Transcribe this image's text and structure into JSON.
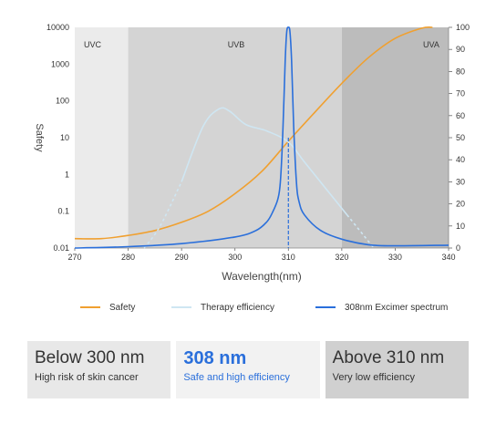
{
  "chart_data": {
    "type": "line",
    "xlabel": "Wavelength(nm)",
    "ylabel": "Safety",
    "x_ticks": [
      270,
      280,
      290,
      300,
      310,
      320,
      330,
      340
    ],
    "y_left_ticks": [
      "0.01",
      "0.1",
      "1",
      "10",
      "100",
      "1000",
      "10000"
    ],
    "y_right_ticks": [
      0,
      10,
      20,
      30,
      40,
      50,
      60,
      70,
      80,
      90,
      100
    ],
    "xlim": [
      270,
      340
    ],
    "ylim_left": [
      0.01,
      10000
    ],
    "ylim_right": [
      0,
      100
    ],
    "y_left_scale": "log",
    "bands": [
      {
        "label": "UVC",
        "from": 270,
        "to": 280,
        "color": "#ebebeb"
      },
      {
        "label": "UVB",
        "from": 280,
        "to": 320,
        "color": "#d4d4d4"
      },
      {
        "label": "UVA",
        "from": 320,
        "to": 340,
        "color": "#bcbcbc"
      }
    ],
    "series": [
      {
        "name": "Safety",
        "axis": "left",
        "color": "#f0a030",
        "x": [
          270,
          275,
          280,
          285,
          290,
          295,
          300,
          305,
          310,
          315,
          320,
          325,
          330,
          335,
          337
        ],
        "y": [
          0.018,
          0.018,
          0.022,
          0.03,
          0.05,
          0.1,
          0.3,
          1.2,
          8,
          50,
          300,
          1500,
          5000,
          9500,
          10000
        ]
      },
      {
        "name": "Therapy efficiency",
        "axis": "right",
        "color": "#cfe6f2",
        "x": [
          283,
          286,
          290,
          294,
          297,
          299,
          302,
          306,
          310,
          313,
          317,
          321,
          324,
          326
        ],
        "y": [
          0,
          10,
          30,
          55,
          63,
          62,
          56,
          53,
          48,
          39,
          27,
          15,
          6,
          0
        ],
        "dashed_x_ranges": [
          [
            283,
            290
          ],
          [
            320,
            326
          ]
        ]
      },
      {
        "name": "308nm Excimer spectrum",
        "axis": "right",
        "color": "#2a6fdb",
        "x": [
          270,
          280,
          290,
          300,
          304,
          306,
          307,
          308,
          308.5,
          309,
          309.4,
          309.7,
          310,
          310.3,
          310.6,
          311,
          311.5,
          312,
          313,
          316,
          320,
          325,
          330,
          340
        ],
        "y": [
          0,
          0.6,
          2,
          5,
          8,
          12,
          16,
          22,
          30,
          55,
          85,
          98,
          100,
          98,
          85,
          55,
          30,
          21,
          15,
          8,
          4,
          1.5,
          1,
          1.3
        ]
      }
    ]
  },
  "legend": {
    "safety": "Safety",
    "therapy": "Therapy efficiency",
    "excimer": "308nm Excimer spectrum"
  },
  "cards": [
    {
      "title": "Below 300 nm",
      "subtitle": "High risk of skin cancer"
    },
    {
      "title": "308 nm",
      "subtitle": "Safe and high efficiency"
    },
    {
      "title": "Above 310 nm",
      "subtitle": "Very low efficiency"
    }
  ]
}
